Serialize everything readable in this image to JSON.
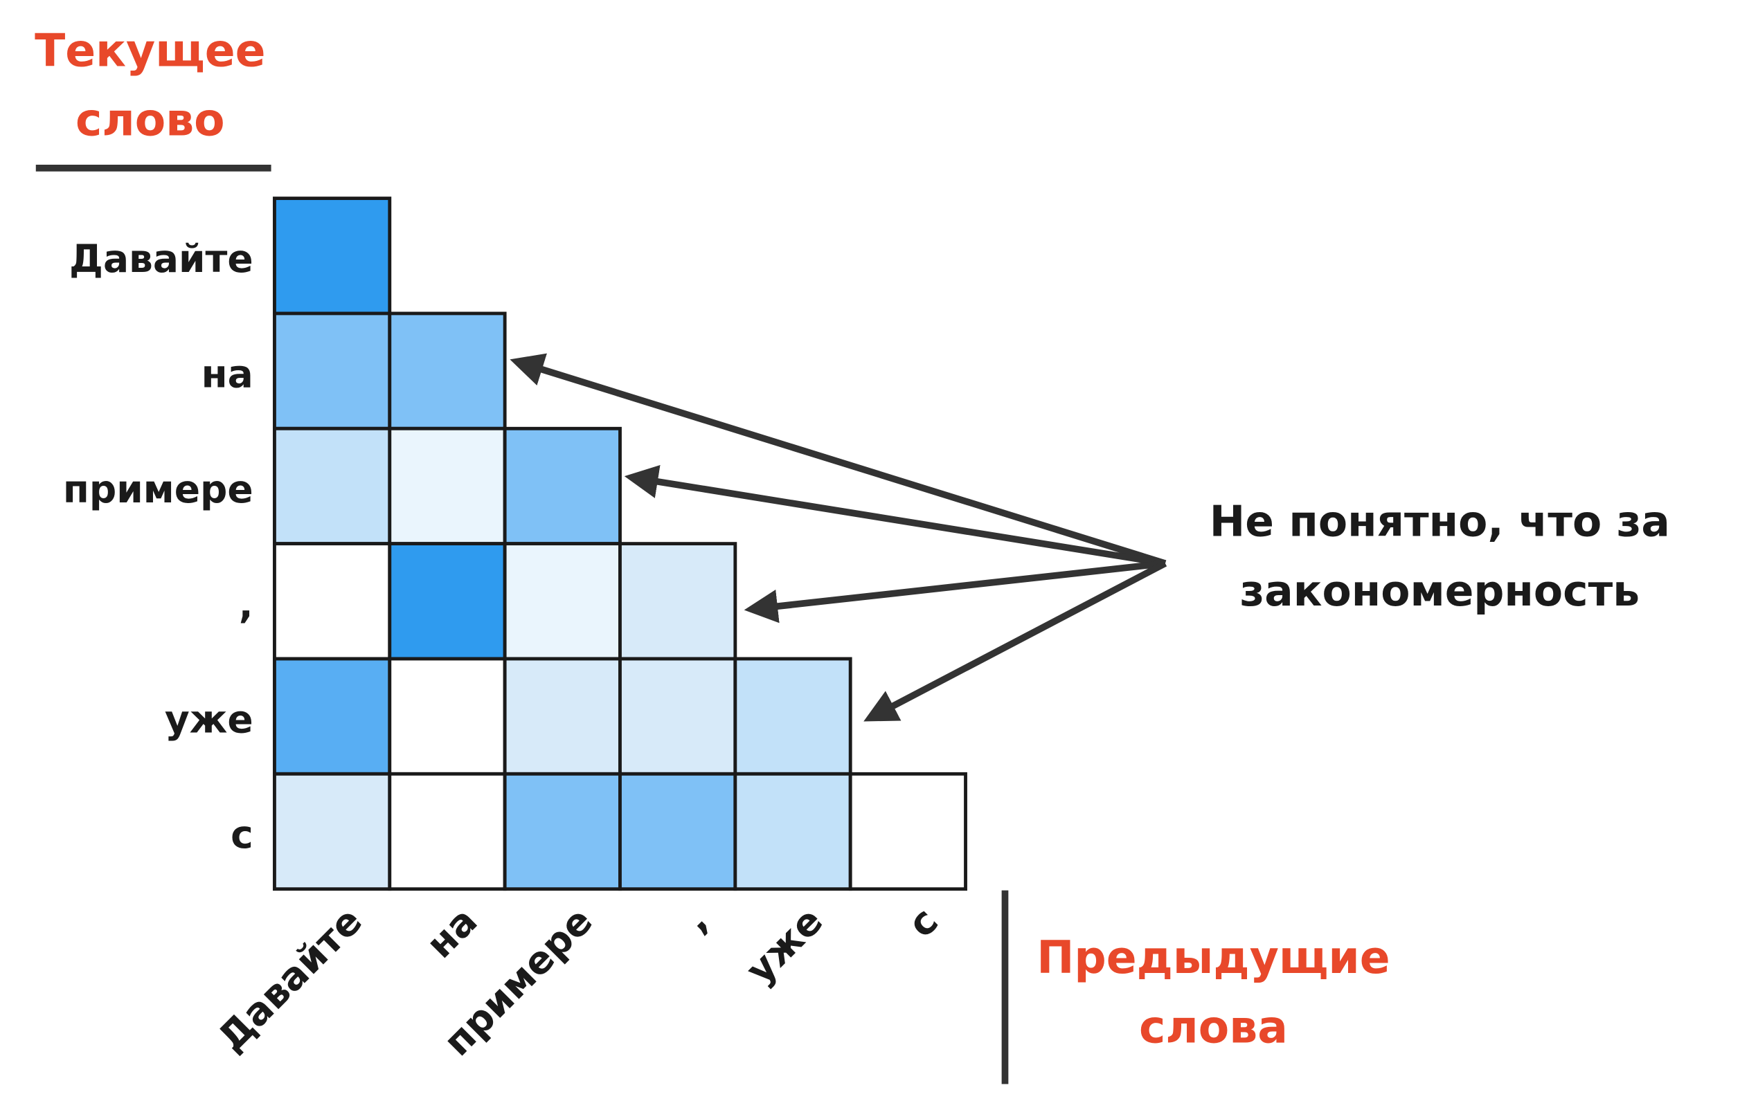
{
  "header": {
    "title_lines": [
      "Текущее",
      "слово"
    ]
  },
  "rows": [
    "Давайте",
    "на",
    "примере",
    ",",
    "уже",
    "с"
  ],
  "columns": [
    "Давайте",
    "на",
    "примере",
    ",",
    "уже",
    "с"
  ],
  "x_label_lines": [
    "Предыдущие",
    "слова"
  ],
  "annotation": {
    "lines": [
      "Не понятно, что за",
      "закономерность"
    ]
  },
  "cells": [
    [
      "#2f9bef"
    ],
    [
      "#7fc1f6",
      "#7fc1f6"
    ],
    [
      "#c2e1f9",
      "#eaf5fd",
      "#7fc1f6"
    ],
    [
      "#ffffff",
      "#2f9bef",
      "#eaf5fd",
      "#d7eaf9"
    ],
    [
      "#58aef3",
      "#ffffff",
      "#d7eaf9",
      "#d7eaf9",
      "#c2e1f9"
    ],
    [
      "#d7eaf9",
      "#ffffff",
      "#7fc1f6",
      "#7fc1f6",
      "#c2e1f9",
      "#ffffff"
    ]
  ]
}
